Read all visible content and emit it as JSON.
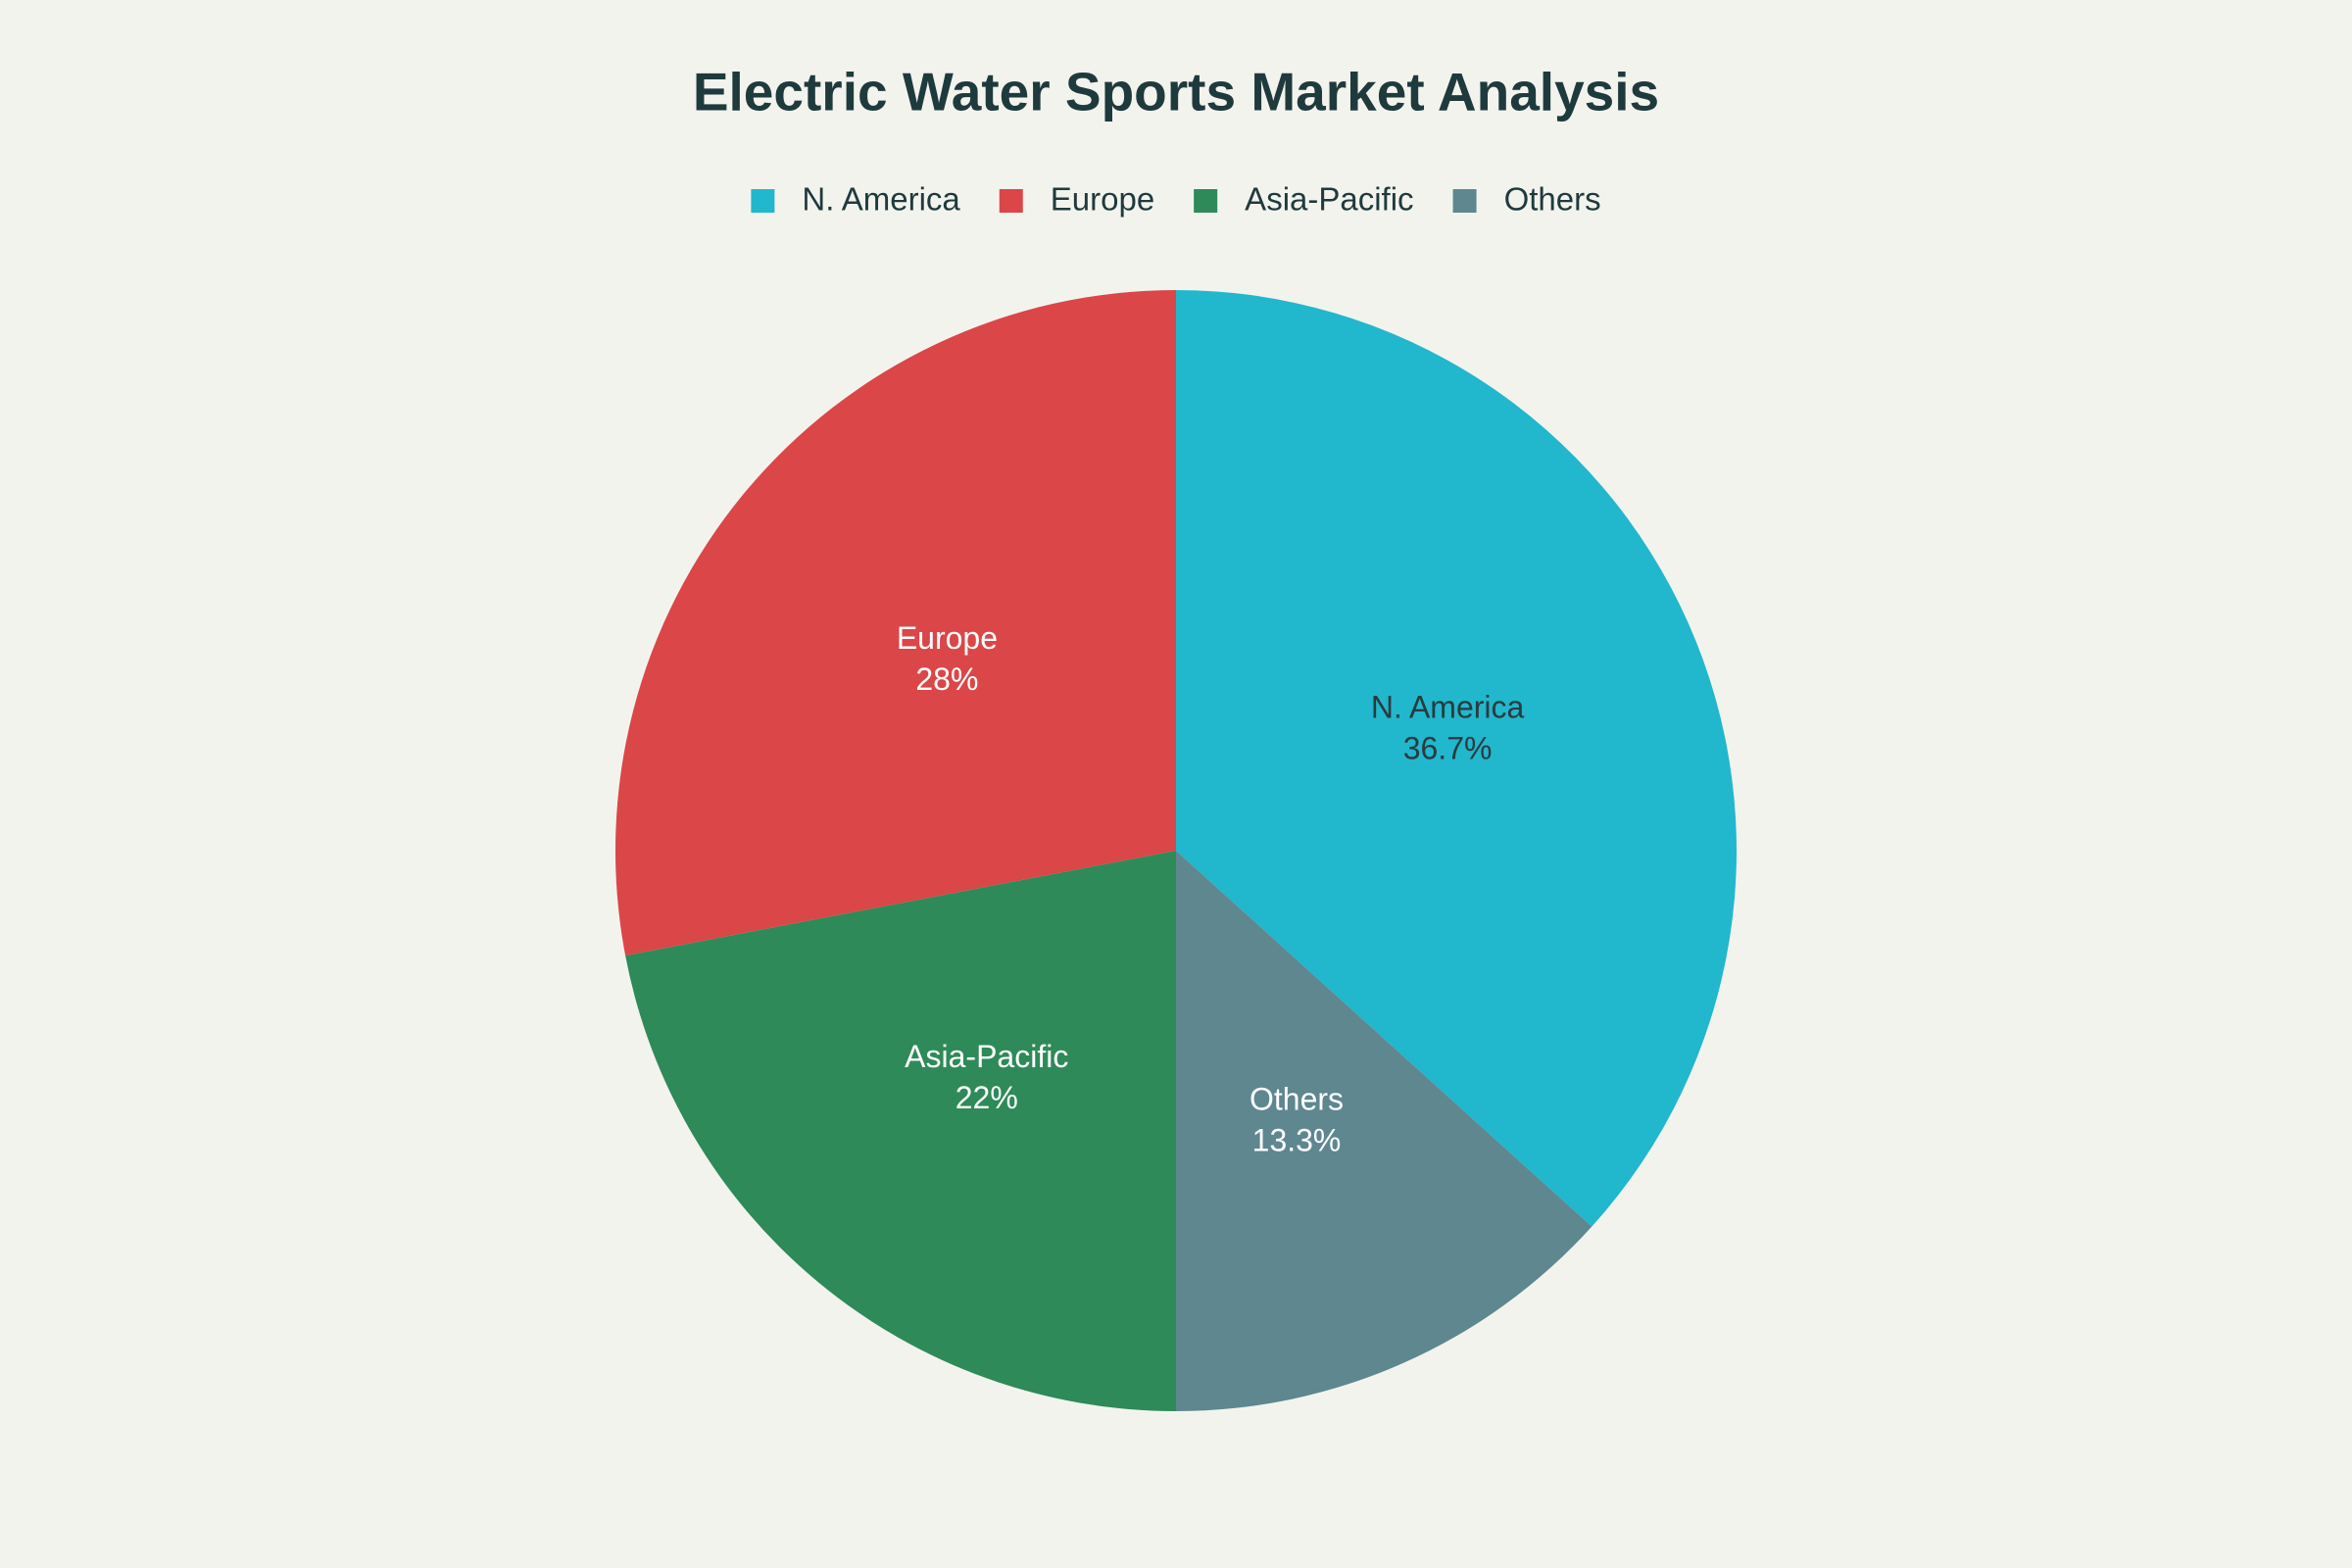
{
  "chart_data": {
    "type": "pie",
    "title": "Electric Water Sports Market Analysis",
    "categories": [
      "N. America",
      "Europe",
      "Asia-Pacific",
      "Others"
    ],
    "values": [
      36.7,
      28,
      22,
      13.3
    ],
    "value_labels": [
      "36.7%",
      "28%",
      "22%",
      "13.3%"
    ],
    "colors": [
      "#21b7cd",
      "#db4648",
      "#2e8a58",
      "#5e8790"
    ],
    "label_colors": [
      "#2a3a3f",
      "#ffffff",
      "#ffffff",
      "#ffffff"
    ],
    "direction": "counterclockwise",
    "legend": "top"
  }
}
